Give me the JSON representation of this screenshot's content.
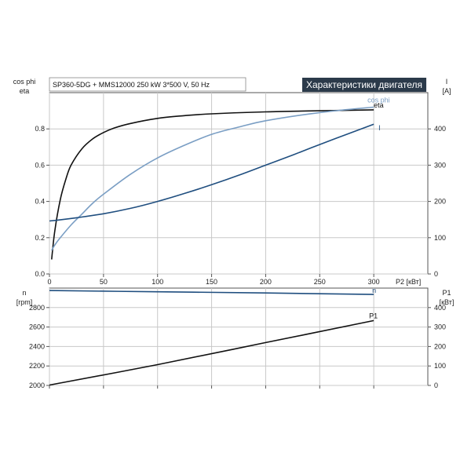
{
  "header": {
    "model_text": "SP360-5DG + MMS12000   250 kW   3*500 V, 50 Hz",
    "badge_text": "Характеристики двигателя"
  },
  "colors": {
    "black_curve": "#111111",
    "light_blue_curve": "#7a9ec4",
    "dark_blue_curve": "#1f4e7f",
    "badge_bg": "#2b3a4a",
    "grid": "#c8c8c8"
  },
  "chart_data": [
    {
      "type": "line",
      "panel": "top",
      "xlabel": "P2 [кВт]",
      "ylabel_left": [
        "cos phi",
        "eta"
      ],
      "ylabel_right": [
        "I",
        "[A]"
      ],
      "xlim": [
        0,
        350
      ],
      "ylim_left": [
        0,
        1.0
      ],
      "ylim_right": [
        0,
        500
      ],
      "x_ticks": [
        0,
        50,
        100,
        150,
        200,
        250,
        300
      ],
      "y_left_ticks": [
        "0.0",
        "0.2",
        "0.4",
        "0.6",
        "0.8"
      ],
      "y_left_tick_values": [
        0.0,
        0.2,
        0.4,
        0.6,
        0.8
      ],
      "y_right_ticks": [
        "0",
        "100",
        "200",
        "300",
        "400"
      ],
      "y_right_tick_values": [
        0,
        100,
        200,
        300,
        400
      ],
      "grid": true,
      "series": [
        {
          "name": "eta",
          "axis": "left",
          "color": "#111111",
          "x": [
            2,
            5,
            10,
            15,
            20,
            30,
            40,
            50,
            60,
            75,
            100,
            125,
            150,
            200,
            250,
            300
          ],
          "y": [
            0.08,
            0.24,
            0.41,
            0.52,
            0.6,
            0.69,
            0.745,
            0.78,
            0.805,
            0.83,
            0.858,
            0.873,
            0.883,
            0.894,
            0.9,
            0.905
          ]
        },
        {
          "name": "cos phi",
          "axis": "left",
          "color": "#7a9ec4",
          "x": [
            2,
            5,
            10,
            20,
            30,
            40,
            50,
            75,
            100,
            125,
            150,
            175,
            200,
            250,
            300
          ],
          "y": [
            0.13,
            0.16,
            0.2,
            0.27,
            0.33,
            0.39,
            0.44,
            0.55,
            0.64,
            0.71,
            0.77,
            0.81,
            0.845,
            0.89,
            0.92
          ]
        },
        {
          "name": "I",
          "axis": "right",
          "color": "#1f4e7f",
          "x": [
            0,
            25,
            50,
            75,
            100,
            125,
            150,
            175,
            200,
            225,
            250,
            275,
            300
          ],
          "y": [
            146,
            155,
            166,
            181,
            200,
            222,
            246,
            272,
            300,
            328,
            357,
            385,
            413
          ]
        }
      ],
      "labels": {
        "eta": "eta",
        "cos_phi": "cos phi",
        "i": "I"
      }
    },
    {
      "type": "line",
      "panel": "bottom",
      "xlim": [
        0,
        350
      ],
      "ylabel_left": [
        "n",
        "[rpm]"
      ],
      "ylabel_right": [
        "P1",
        "[кВт]"
      ],
      "ylim_left": [
        2000,
        3000
      ],
      "ylim_right": [
        0,
        500
      ],
      "y_left_ticks": [
        "2000",
        "2200",
        "2400",
        "2600",
        "2800"
      ],
      "y_left_tick_values": [
        2000,
        2200,
        2400,
        2600,
        2800
      ],
      "y_right_ticks": [
        "0",
        "100",
        "200",
        "300",
        "400"
      ],
      "y_right_tick_values": [
        0,
        100,
        200,
        300,
        400
      ],
      "grid": true,
      "series": [
        {
          "name": "n",
          "axis": "left",
          "color": "#1f4e7f",
          "x": [
            0,
            100,
            200,
            300
          ],
          "y": [
            2975,
            2962,
            2950,
            2935
          ]
        },
        {
          "name": "P1",
          "axis": "right",
          "color": "#111111",
          "x": [
            0,
            100,
            200,
            300
          ],
          "y": [
            2,
            107,
            220,
            333
          ]
        }
      ],
      "labels": {
        "n": "n",
        "p1": "P1"
      }
    }
  ]
}
